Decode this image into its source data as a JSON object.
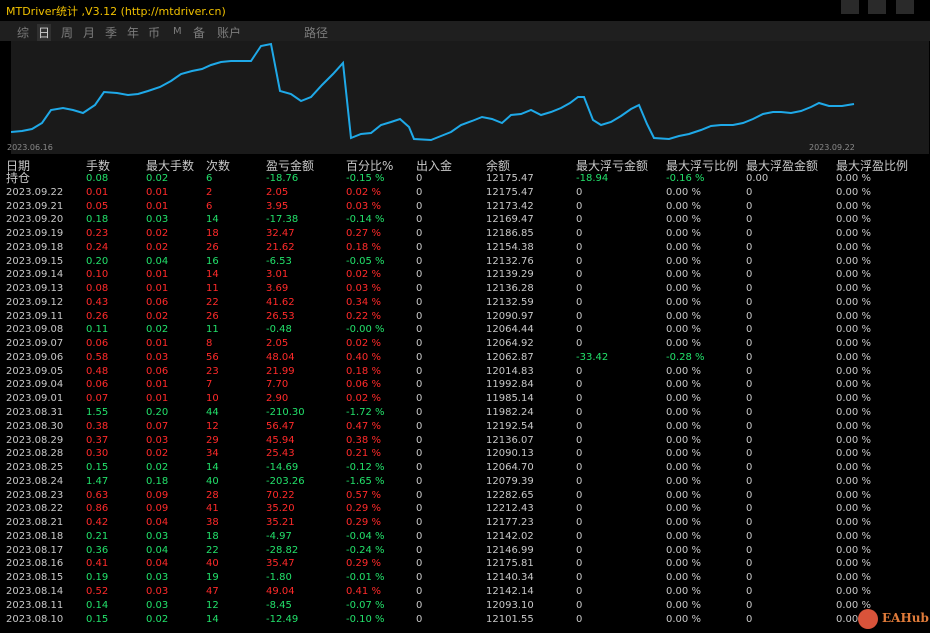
{
  "window": {
    "title": "MTDriver统计 ,V3.12 (http://mtdriver.cn)"
  },
  "menu": [
    "综",
    "日",
    "周",
    "月",
    "季",
    "年",
    "币",
    "M",
    "备",
    "账户",
    "路径"
  ],
  "active_menu": "日",
  "chart": {
    "date_start": "2023.06.16",
    "date_end": "2023.09.22",
    "line_color": "#1fa9e8"
  },
  "table": {
    "headers": [
      "日期",
      "手数",
      "最大手数",
      "次数",
      "盈亏金额",
      "百分比%",
      "出入金",
      "余额",
      "最大浮亏金额",
      "最大浮亏比例",
      "最大浮盈金额",
      "最大浮盈比例"
    ],
    "rows": [
      [
        "持仓",
        "0.08",
        "0.02",
        "6",
        "-18.76",
        "-0.15 %",
        "0",
        "12175.47",
        "-18.94",
        "-0.16 %",
        "0.00",
        "0.00 %"
      ],
      [
        "2023.09.22",
        "0.01",
        "0.01",
        "2",
        "2.05",
        "0.02 %",
        "0",
        "12175.47",
        "0",
        "0.00 %",
        "0",
        "0.00 %"
      ],
      [
        "2023.09.21",
        "0.05",
        "0.01",
        "6",
        "3.95",
        "0.03 %",
        "0",
        "12173.42",
        "0",
        "0.00 %",
        "0",
        "0.00 %"
      ],
      [
        "2023.09.20",
        "0.18",
        "0.03",
        "14",
        "-17.38",
        "-0.14 %",
        "0",
        "12169.47",
        "0",
        "0.00 %",
        "0",
        "0.00 %"
      ],
      [
        "2023.09.19",
        "0.23",
        "0.02",
        "18",
        "32.47",
        "0.27 %",
        "0",
        "12186.85",
        "0",
        "0.00 %",
        "0",
        "0.00 %"
      ],
      [
        "2023.09.18",
        "0.24",
        "0.02",
        "26",
        "21.62",
        "0.18 %",
        "0",
        "12154.38",
        "0",
        "0.00 %",
        "0",
        "0.00 %"
      ],
      [
        "2023.09.15",
        "0.20",
        "0.04",
        "16",
        "-6.53",
        "-0.05 %",
        "0",
        "12132.76",
        "0",
        "0.00 %",
        "0",
        "0.00 %"
      ],
      [
        "2023.09.14",
        "0.10",
        "0.01",
        "14",
        "3.01",
        "0.02 %",
        "0",
        "12139.29",
        "0",
        "0.00 %",
        "0",
        "0.00 %"
      ],
      [
        "2023.09.13",
        "0.08",
        "0.01",
        "11",
        "3.69",
        "0.03 %",
        "0",
        "12136.28",
        "0",
        "0.00 %",
        "0",
        "0.00 %"
      ],
      [
        "2023.09.12",
        "0.43",
        "0.06",
        "22",
        "41.62",
        "0.34 %",
        "0",
        "12132.59",
        "0",
        "0.00 %",
        "0",
        "0.00 %"
      ],
      [
        "2023.09.11",
        "0.26",
        "0.02",
        "26",
        "26.53",
        "0.22 %",
        "0",
        "12090.97",
        "0",
        "0.00 %",
        "0",
        "0.00 %"
      ],
      [
        "2023.09.08",
        "0.11",
        "0.02",
        "11",
        "-0.48",
        "-0.00 %",
        "0",
        "12064.44",
        "0",
        "0.00 %",
        "0",
        "0.00 %"
      ],
      [
        "2023.09.07",
        "0.06",
        "0.01",
        "8",
        "2.05",
        "0.02 %",
        "0",
        "12064.92",
        "0",
        "0.00 %",
        "0",
        "0.00 %"
      ],
      [
        "2023.09.06",
        "0.58",
        "0.03",
        "56",
        "48.04",
        "0.40 %",
        "0",
        "12062.87",
        "-33.42",
        "-0.28 %",
        "0",
        "0.00 %"
      ],
      [
        "2023.09.05",
        "0.48",
        "0.06",
        "23",
        "21.99",
        "0.18 %",
        "0",
        "12014.83",
        "0",
        "0.00 %",
        "0",
        "0.00 %"
      ],
      [
        "2023.09.04",
        "0.06",
        "0.01",
        "7",
        "7.70",
        "0.06 %",
        "0",
        "11992.84",
        "0",
        "0.00 %",
        "0",
        "0.00 %"
      ],
      [
        "2023.09.01",
        "0.07",
        "0.01",
        "10",
        "2.90",
        "0.02 %",
        "0",
        "11985.14",
        "0",
        "0.00 %",
        "0",
        "0.00 %"
      ],
      [
        "2023.08.31",
        "1.55",
        "0.20",
        "44",
        "-210.30",
        "-1.72 %",
        "0",
        "11982.24",
        "0",
        "0.00 %",
        "0",
        "0.00 %"
      ],
      [
        "2023.08.30",
        "0.38",
        "0.07",
        "12",
        "56.47",
        "0.47 %",
        "0",
        "12192.54",
        "0",
        "0.00 %",
        "0",
        "0.00 %"
      ],
      [
        "2023.08.29",
        "0.37",
        "0.03",
        "29",
        "45.94",
        "0.38 %",
        "0",
        "12136.07",
        "0",
        "0.00 %",
        "0",
        "0.00 %"
      ],
      [
        "2023.08.28",
        "0.30",
        "0.02",
        "34",
        "25.43",
        "0.21 %",
        "0",
        "12090.13",
        "0",
        "0.00 %",
        "0",
        "0.00 %"
      ],
      [
        "2023.08.25",
        "0.15",
        "0.02",
        "14",
        "-14.69",
        "-0.12 %",
        "0",
        "12064.70",
        "0",
        "0.00 %",
        "0",
        "0.00 %"
      ],
      [
        "2023.08.24",
        "1.47",
        "0.18",
        "40",
        "-203.26",
        "-1.65 %",
        "0",
        "12079.39",
        "0",
        "0.00 %",
        "0",
        "0.00 %"
      ],
      [
        "2023.08.23",
        "0.63",
        "0.09",
        "28",
        "70.22",
        "0.57 %",
        "0",
        "12282.65",
        "0",
        "0.00 %",
        "0",
        "0.00 %"
      ],
      [
        "2023.08.22",
        "0.86",
        "0.09",
        "41",
        "35.20",
        "0.29 %",
        "0",
        "12212.43",
        "0",
        "0.00 %",
        "0",
        "0.00 %"
      ],
      [
        "2023.08.21",
        "0.42",
        "0.04",
        "38",
        "35.21",
        "0.29 %",
        "0",
        "12177.23",
        "0",
        "0.00 %",
        "0",
        "0.00 %"
      ],
      [
        "2023.08.18",
        "0.21",
        "0.03",
        "18",
        "-4.97",
        "-0.04 %",
        "0",
        "12142.02",
        "0",
        "0.00 %",
        "0",
        "0.00 %"
      ],
      [
        "2023.08.17",
        "0.36",
        "0.04",
        "22",
        "-28.82",
        "-0.24 %",
        "0",
        "12146.99",
        "0",
        "0.00 %",
        "0",
        "0.00 %"
      ],
      [
        "2023.08.16",
        "0.41",
        "0.04",
        "40",
        "35.47",
        "0.29 %",
        "0",
        "12175.81",
        "0",
        "0.00 %",
        "0",
        "0.00 %"
      ],
      [
        "2023.08.15",
        "0.19",
        "0.03",
        "19",
        "-1.80",
        "-0.01 %",
        "0",
        "12140.34",
        "0",
        "0.00 %",
        "0",
        "0.00 %"
      ],
      [
        "2023.08.14",
        "0.52",
        "0.03",
        "47",
        "49.04",
        "0.41 %",
        "0",
        "12142.14",
        "0",
        "0.00 %",
        "0",
        "0.00 %"
      ],
      [
        "2023.08.11",
        "0.14",
        "0.03",
        "12",
        "-8.45",
        "-0.07 %",
        "0",
        "12093.10",
        "0",
        "0.00 %",
        "0",
        "0.00 %"
      ],
      [
        "2023.08.10",
        "0.15",
        "0.02",
        "14",
        "-12.49",
        "-0.10 %",
        "0",
        "12101.55",
        "0",
        "0.00 %",
        "0",
        "0.00 %"
      ]
    ]
  },
  "watermark": {
    "text": "EAHub"
  }
}
